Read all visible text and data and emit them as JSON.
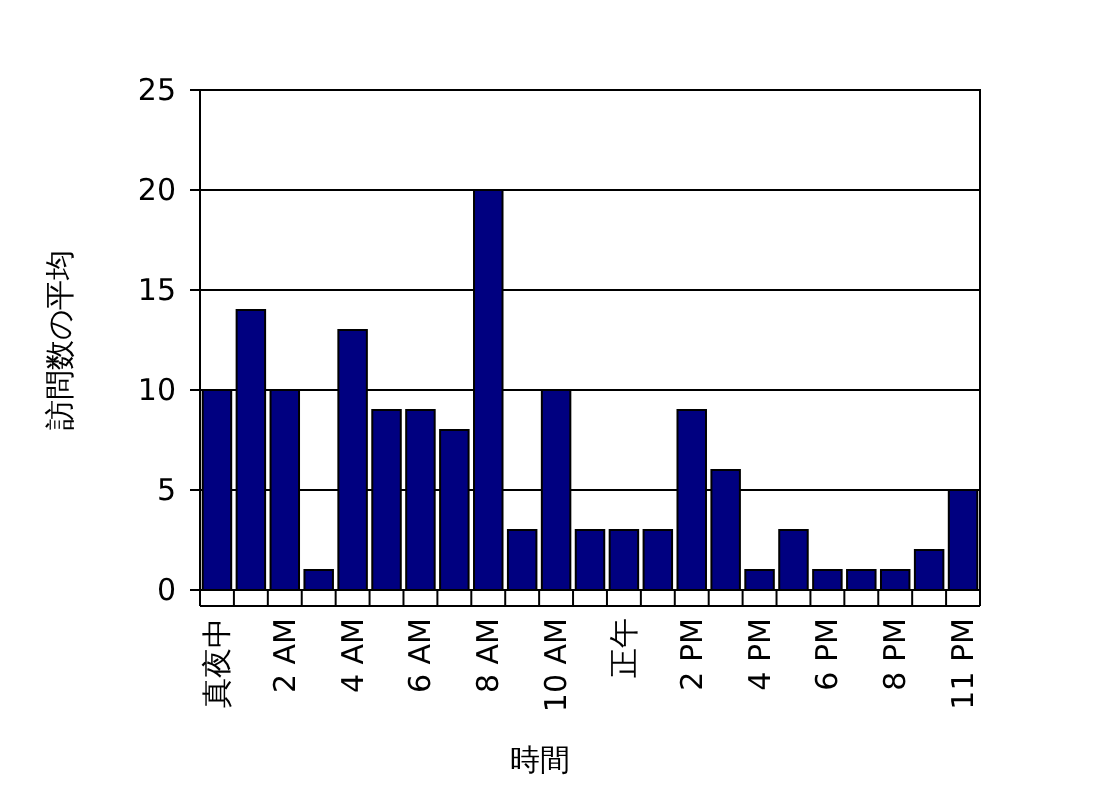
{
  "chart_data": {
    "type": "bar",
    "xlabel": "時間",
    "ylabel": "訪問数の平均",
    "categories": [
      "真夜中",
      null,
      "2 AM",
      null,
      "4 AM",
      null,
      "6 AM",
      null,
      "8 AM",
      null,
      "10 AM",
      null,
      "正午",
      null,
      "2 PM",
      null,
      "4 PM",
      null,
      "6 PM",
      null,
      "8 PM",
      null,
      "11 PM"
    ],
    "values": [
      10,
      14,
      10,
      1,
      13,
      9,
      9,
      8,
      20,
      3,
      10,
      3,
      3,
      3,
      9,
      6,
      1,
      3,
      1,
      1,
      1,
      2,
      5
    ],
    "color": "#000080",
    "ylim": [
      0,
      25
    ],
    "yticks": [
      0,
      5,
      10,
      15,
      20,
      25
    ],
    "grid": "y"
  }
}
